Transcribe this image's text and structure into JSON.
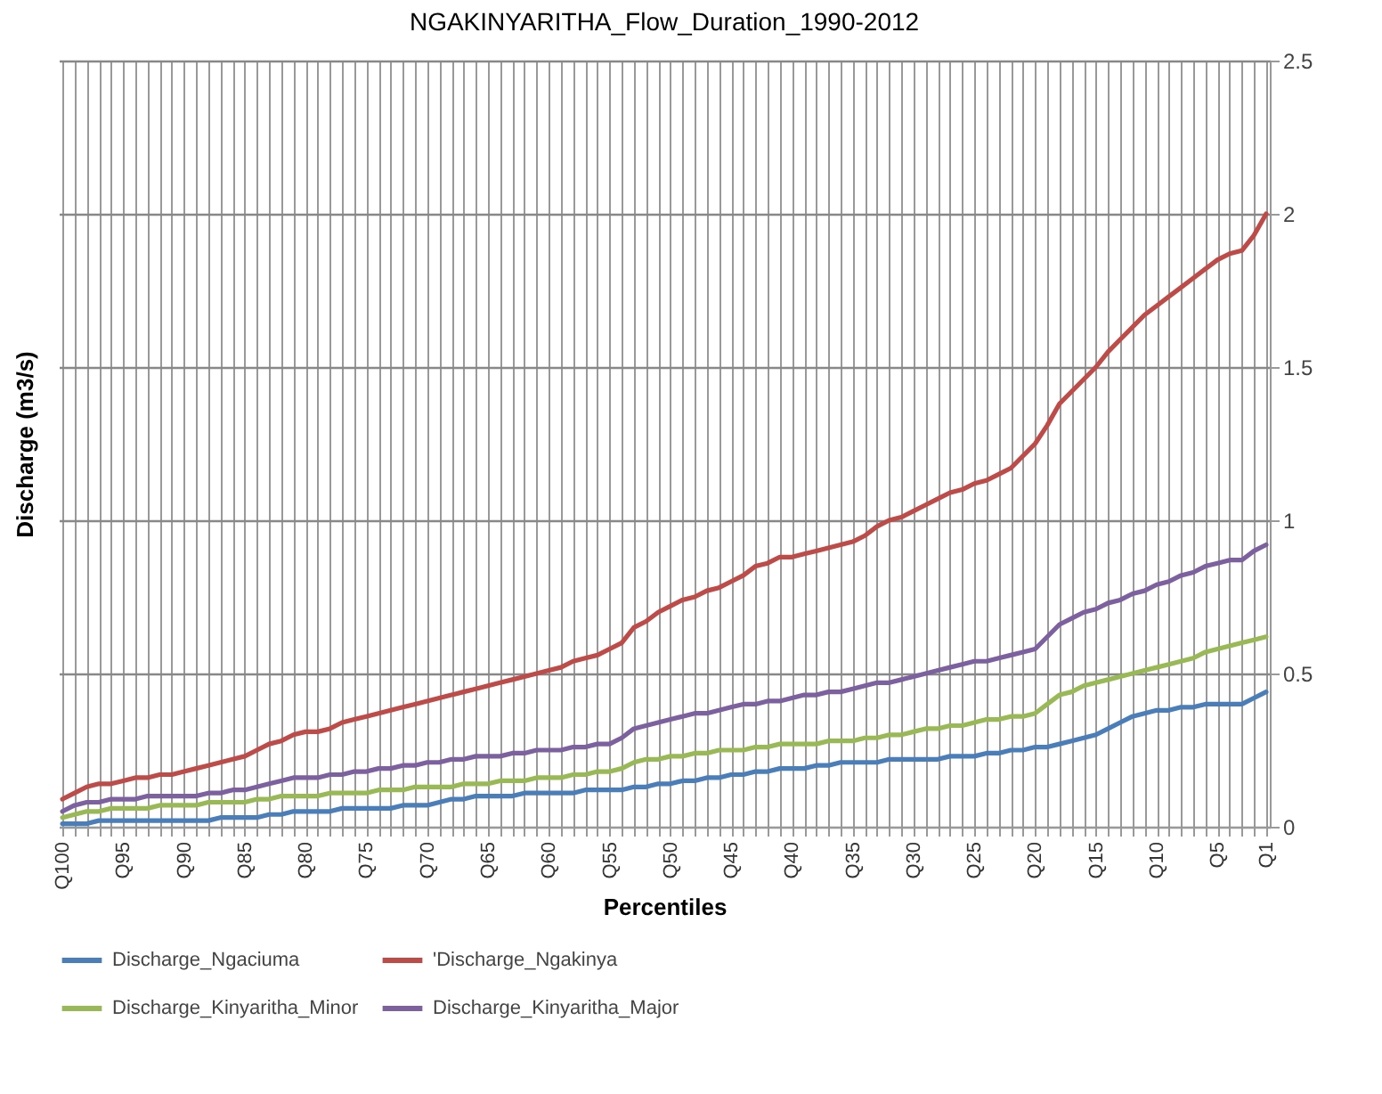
{
  "chart_data": {
    "type": "line",
    "title": "NGAKINYARITHA_Flow_Duration_1990-2012",
    "xlabel": "Percentiles",
    "ylabel": "Discharge (m3/s)",
    "categories": [
      "Q100",
      null,
      null,
      null,
      null,
      "Q95",
      null,
      null,
      null,
      null,
      "Q90",
      null,
      null,
      null,
      null,
      "Q85",
      null,
      null,
      null,
      null,
      "Q80",
      null,
      null,
      null,
      null,
      "Q75",
      null,
      null,
      null,
      null,
      "Q70",
      null,
      null,
      null,
      null,
      "Q65",
      null,
      null,
      null,
      null,
      "Q60",
      null,
      null,
      null,
      null,
      "Q55",
      null,
      null,
      null,
      null,
      "Q50",
      null,
      null,
      null,
      null,
      "Q45",
      null,
      null,
      null,
      null,
      "Q40",
      null,
      null,
      null,
      null,
      "Q35",
      null,
      null,
      null,
      null,
      "Q30",
      null,
      null,
      null,
      null,
      "Q25",
      null,
      null,
      null,
      null,
      "Q20",
      null,
      null,
      null,
      null,
      "Q15",
      null,
      null,
      null,
      null,
      "Q10",
      null,
      null,
      null,
      null,
      "Q5",
      null,
      null,
      null,
      "Q1"
    ],
    "ylim": [
      0,
      2.5
    ],
    "yticks": [
      0,
      0.5,
      1,
      1.5,
      2,
      2.5
    ],
    "grid": true,
    "legend": "bottom",
    "line_style": "solid",
    "marker": "none",
    "series": [
      {
        "name": "Discharge_Ngaciuma",
        "color": "#4a7ebb",
        "values": [
          0.01,
          0.01,
          0.01,
          0.02,
          0.02,
          0.02,
          0.02,
          0.02,
          0.02,
          0.02,
          0.02,
          0.02,
          0.02,
          0.03,
          0.03,
          0.03,
          0.03,
          0.04,
          0.04,
          0.05,
          0.05,
          0.05,
          0.05,
          0.06,
          0.06,
          0.06,
          0.06,
          0.06,
          0.07,
          0.07,
          0.07,
          0.08,
          0.09,
          0.09,
          0.1,
          0.1,
          0.1,
          0.1,
          0.11,
          0.11,
          0.11,
          0.11,
          0.11,
          0.12,
          0.12,
          0.12,
          0.12,
          0.13,
          0.13,
          0.14,
          0.14,
          0.15,
          0.15,
          0.16,
          0.16,
          0.17,
          0.17,
          0.18,
          0.18,
          0.19,
          0.19,
          0.19,
          0.2,
          0.2,
          0.21,
          0.21,
          0.21,
          0.21,
          0.22,
          0.22,
          0.22,
          0.22,
          0.22,
          0.23,
          0.23,
          0.23,
          0.24,
          0.24,
          0.25,
          0.25,
          0.26,
          0.26,
          0.27,
          0.28,
          0.29,
          0.3,
          0.32,
          0.34,
          0.36,
          0.37,
          0.38,
          0.38,
          0.39,
          0.39,
          0.4,
          0.4,
          0.4,
          0.4,
          0.42,
          0.44
        ]
      },
      {
        "name": "'Discharge_Ngakinya",
        "color": "#be4b48",
        "values": [
          0.09,
          0.11,
          0.13,
          0.14,
          0.14,
          0.15,
          0.16,
          0.16,
          0.17,
          0.17,
          0.18,
          0.19,
          0.2,
          0.21,
          0.22,
          0.23,
          0.25,
          0.27,
          0.28,
          0.3,
          0.31,
          0.31,
          0.32,
          0.34,
          0.35,
          0.36,
          0.37,
          0.38,
          0.39,
          0.4,
          0.41,
          0.42,
          0.43,
          0.44,
          0.45,
          0.46,
          0.47,
          0.48,
          0.49,
          0.5,
          0.51,
          0.52,
          0.54,
          0.55,
          0.56,
          0.58,
          0.6,
          0.65,
          0.67,
          0.7,
          0.72,
          0.74,
          0.75,
          0.77,
          0.78,
          0.8,
          0.82,
          0.85,
          0.86,
          0.88,
          0.88,
          0.89,
          0.9,
          0.91,
          0.92,
          0.93,
          0.95,
          0.98,
          1.0,
          1.01,
          1.03,
          1.05,
          1.07,
          1.09,
          1.1,
          1.12,
          1.13,
          1.15,
          1.17,
          1.21,
          1.25,
          1.31,
          1.38,
          1.42,
          1.46,
          1.5,
          1.55,
          1.59,
          1.63,
          1.67,
          1.7,
          1.73,
          1.76,
          1.79,
          1.82,
          1.85,
          1.87,
          1.88,
          1.93,
          2.0
        ]
      },
      {
        "name": "Discharge_Kinyaritha_Minor",
        "color": "#98b954",
        "values": [
          0.03,
          0.04,
          0.05,
          0.05,
          0.06,
          0.06,
          0.06,
          0.06,
          0.07,
          0.07,
          0.07,
          0.07,
          0.08,
          0.08,
          0.08,
          0.08,
          0.09,
          0.09,
          0.1,
          0.1,
          0.1,
          0.1,
          0.11,
          0.11,
          0.11,
          0.11,
          0.12,
          0.12,
          0.12,
          0.13,
          0.13,
          0.13,
          0.13,
          0.14,
          0.14,
          0.14,
          0.15,
          0.15,
          0.15,
          0.16,
          0.16,
          0.16,
          0.17,
          0.17,
          0.18,
          0.18,
          0.19,
          0.21,
          0.22,
          0.22,
          0.23,
          0.23,
          0.24,
          0.24,
          0.25,
          0.25,
          0.25,
          0.26,
          0.26,
          0.27,
          0.27,
          0.27,
          0.27,
          0.28,
          0.28,
          0.28,
          0.29,
          0.29,
          0.3,
          0.3,
          0.31,
          0.32,
          0.32,
          0.33,
          0.33,
          0.34,
          0.35,
          0.35,
          0.36,
          0.36,
          0.37,
          0.4,
          0.43,
          0.44,
          0.46,
          0.47,
          0.48,
          0.49,
          0.5,
          0.51,
          0.52,
          0.53,
          0.54,
          0.55,
          0.57,
          0.58,
          0.59,
          0.6,
          0.61,
          0.62
        ]
      },
      {
        "name": "Discharge_Kinyaritha_Major",
        "color": "#7d60a0",
        "values": [
          0.05,
          0.07,
          0.08,
          0.08,
          0.09,
          0.09,
          0.09,
          0.1,
          0.1,
          0.1,
          0.1,
          0.1,
          0.11,
          0.11,
          0.12,
          0.12,
          0.13,
          0.14,
          0.15,
          0.16,
          0.16,
          0.16,
          0.17,
          0.17,
          0.18,
          0.18,
          0.19,
          0.19,
          0.2,
          0.2,
          0.21,
          0.21,
          0.22,
          0.22,
          0.23,
          0.23,
          0.23,
          0.24,
          0.24,
          0.25,
          0.25,
          0.25,
          0.26,
          0.26,
          0.27,
          0.27,
          0.29,
          0.32,
          0.33,
          0.34,
          0.35,
          0.36,
          0.37,
          0.37,
          0.38,
          0.39,
          0.4,
          0.4,
          0.41,
          0.41,
          0.42,
          0.43,
          0.43,
          0.44,
          0.44,
          0.45,
          0.46,
          0.47,
          0.47,
          0.48,
          0.49,
          0.5,
          0.51,
          0.52,
          0.53,
          0.54,
          0.54,
          0.55,
          0.56,
          0.57,
          0.58,
          0.62,
          0.66,
          0.68,
          0.7,
          0.71,
          0.73,
          0.74,
          0.76,
          0.77,
          0.79,
          0.8,
          0.82,
          0.83,
          0.85,
          0.86,
          0.87,
          0.87,
          0.9,
          0.92
        ]
      }
    ]
  }
}
